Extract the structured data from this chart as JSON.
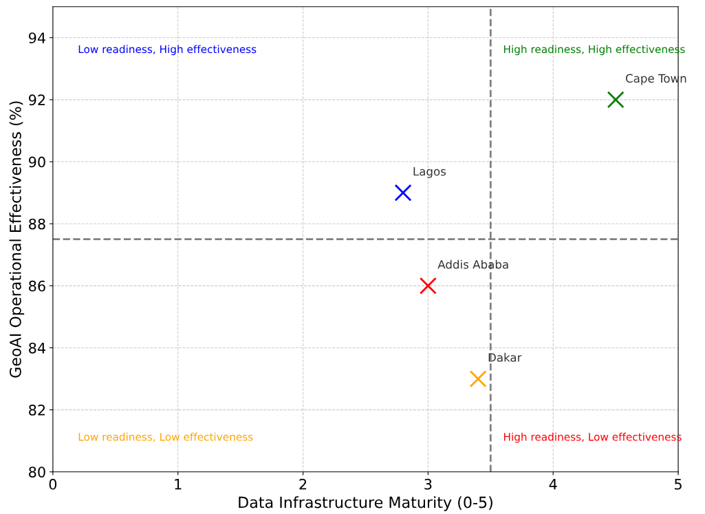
{
  "chart_data": {
    "type": "scatter",
    "xlabel": "Data Infrastructure Maturity (0-5)",
    "ylabel": "GeoAI Operational Effectiveness (%)",
    "xlim": [
      0,
      5
    ],
    "xticks": [
      0,
      1,
      2,
      3,
      4,
      5
    ],
    "ylim": [
      80,
      95
    ],
    "yticks": [
      80,
      82,
      84,
      86,
      88,
      90,
      92,
      94
    ],
    "series": [
      {
        "name": "Lagos",
        "color": "#0000ff",
        "x": [
          2.8
        ],
        "values": [
          89
        ]
      },
      {
        "name": "Addis Ababa",
        "color": "#ff0000",
        "x": [
          3.0
        ],
        "values": [
          86
        ]
      },
      {
        "name": "Dakar",
        "color": "#ffa500",
        "x": [
          3.4
        ],
        "values": [
          83
        ]
      },
      {
        "name": "Cape Town",
        "color": "#008000",
        "x": [
          4.5
        ],
        "values": [
          92
        ]
      }
    ],
    "marker": "cross",
    "grid": true,
    "ref_lines": [
      {
        "axis": "x",
        "value": 3.5,
        "color": "#808080",
        "line_style": "dashed"
      },
      {
        "axis": "y",
        "value": 87.5,
        "color": "#808080",
        "line_style": "dashed"
      }
    ],
    "annotations": [
      "Low readiness, High effectiveness",
      "High readiness, High effectiveness",
      "Low readiness, Low effectiveness",
      "High readiness, Low effectiveness"
    ]
  }
}
